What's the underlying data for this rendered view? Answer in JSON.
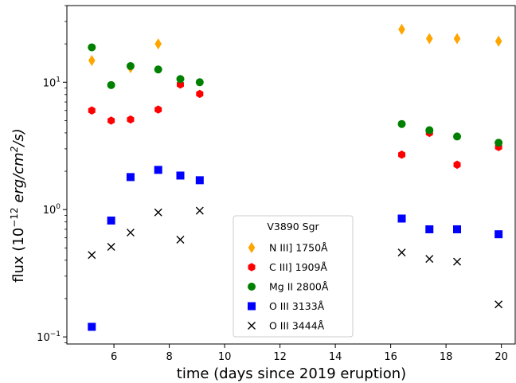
{
  "chart_data": {
    "type": "scatter",
    "title": "",
    "xlabel": "time (days since 2019 eruption)",
    "ylabel": {
      "prefix": "flux (10",
      "exponent": "−12",
      "unit": "erg/cm",
      "unit_power": "2",
      "unit_suffix": "/s)"
    },
    "xlim": [
      4.3,
      20.5
    ],
    "ylim": [
      0.088,
      40
    ],
    "yscale": "log",
    "xticks": [
      6,
      8,
      10,
      12,
      14,
      16,
      18,
      20
    ],
    "yticks": [
      {
        "value": 0.1,
        "base": "10",
        "exp": "−1"
      },
      {
        "value": 1,
        "base": "10",
        "exp": "0"
      },
      {
        "value": 10,
        "base": "10",
        "exp": "1"
      }
    ],
    "grid": false,
    "legend": {
      "title": "V3890 Sgr",
      "placement": "lower-center"
    },
    "series": [
      {
        "name": "N III] 1750Å",
        "marker": "thin-diamond",
        "color": "#FFA500",
        "x": [
          5.2,
          6.6,
          7.6,
          16.4,
          17.4,
          18.4,
          19.9
        ],
        "y": [
          14.8,
          13.0,
          20.0,
          26.0,
          22.0,
          22.0,
          21.0
        ]
      },
      {
        "name": "C III] 1909Å",
        "marker": "hexagon",
        "color": "#FF0000",
        "x": [
          5.2,
          5.9,
          6.6,
          7.6,
          8.4,
          9.1,
          16.4,
          17.4,
          18.4,
          19.9
        ],
        "y": [
          6.0,
          5.0,
          5.1,
          6.1,
          9.6,
          8.1,
          2.7,
          4.0,
          2.25,
          3.1
        ]
      },
      {
        "name": "Mg II 2800Å",
        "marker": "circle",
        "color": "#008000",
        "x": [
          5.2,
          5.9,
          6.6,
          7.6,
          8.4,
          9.1,
          16.4,
          17.4,
          18.4,
          19.9
        ],
        "y": [
          18.8,
          9.5,
          13.4,
          12.6,
          10.6,
          10.0,
          4.7,
          4.2,
          3.75,
          3.35
        ]
      },
      {
        "name": "O III 3133Å",
        "marker": "square",
        "color": "#0000FF",
        "x": [
          5.2,
          5.9,
          6.6,
          7.6,
          8.4,
          9.1,
          16.4,
          17.4,
          18.4,
          19.9
        ],
        "y": [
          0.12,
          0.82,
          1.8,
          2.05,
          1.85,
          1.7,
          0.85,
          0.7,
          0.7,
          0.64
        ]
      },
      {
        "name": "O III 3444Å",
        "marker": "x",
        "color": "#000000",
        "x": [
          5.2,
          5.9,
          6.6,
          7.6,
          8.4,
          9.1,
          16.4,
          17.4,
          18.4,
          19.9
        ],
        "y": [
          0.44,
          0.51,
          0.66,
          0.95,
          0.58,
          0.98,
          0.46,
          0.41,
          0.39,
          0.18
        ]
      }
    ]
  }
}
